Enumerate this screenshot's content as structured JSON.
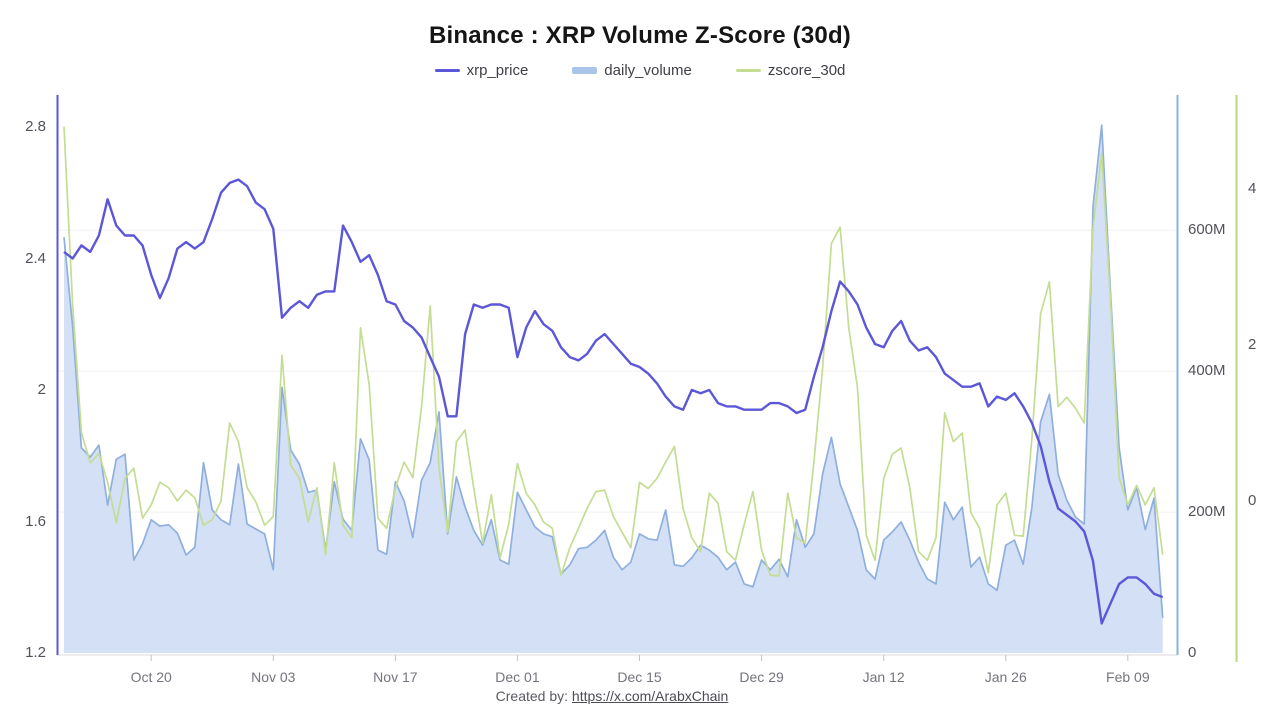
{
  "chart": {
    "title": "Binance : XRP Volume Z-Score (30d)"
  },
  "legend": {
    "items": [
      {
        "label": "xrp_price",
        "color": "#5b57d8",
        "type": "line"
      },
      {
        "label": "daily_volume",
        "color": "#a9c5ea",
        "type": "area"
      },
      {
        "label": "zscore_30d",
        "color": "#c4dd93",
        "type": "line"
      }
    ]
  },
  "footer": {
    "prefix": "Created by:",
    "link_text": "https://x.com/ArabxChain"
  },
  "chart_data": {
    "type": "line",
    "title": "Binance : XRP Volume Z-Score (30d)",
    "legend_position": "top",
    "grid": true,
    "x": [
      "Oct 10",
      "Oct 11",
      "Oct 12",
      "Oct 13",
      "Oct 14",
      "Oct 15",
      "Oct 16",
      "Oct 17",
      "Oct 18",
      "Oct 19",
      "Oct 20",
      "Oct 21",
      "Oct 22",
      "Oct 23",
      "Oct 24",
      "Oct 25",
      "Oct 26",
      "Oct 27",
      "Oct 28",
      "Oct 29",
      "Oct 30",
      "Oct 31",
      "Nov 01",
      "Nov 02",
      "Nov 03",
      "Nov 04",
      "Nov 05",
      "Nov 06",
      "Nov 07",
      "Nov 08",
      "Nov 09",
      "Nov 10",
      "Nov 11",
      "Nov 12",
      "Nov 13",
      "Nov 14",
      "Nov 15",
      "Nov 16",
      "Nov 17",
      "Nov 18",
      "Nov 19",
      "Nov 20",
      "Nov 21",
      "Nov 22",
      "Nov 23",
      "Nov 24",
      "Nov 25",
      "Nov 26",
      "Nov 27",
      "Nov 28",
      "Nov 29",
      "Nov 30",
      "Dec 01",
      "Dec 02",
      "Dec 03",
      "Dec 04",
      "Dec 05",
      "Dec 06",
      "Dec 07",
      "Dec 08",
      "Dec 09",
      "Dec 10",
      "Dec 11",
      "Dec 12",
      "Dec 13",
      "Dec 14",
      "Dec 15",
      "Dec 16",
      "Dec 17",
      "Dec 18",
      "Dec 19",
      "Dec 20",
      "Dec 21",
      "Dec 22",
      "Dec 23",
      "Dec 24",
      "Dec 25",
      "Dec 26",
      "Dec 27",
      "Dec 28",
      "Dec 29",
      "Dec 30",
      "Dec 31",
      "Jan 01",
      "Jan 02",
      "Jan 03",
      "Jan 04",
      "Jan 05",
      "Jan 06",
      "Jan 07",
      "Jan 08",
      "Jan 09",
      "Jan 10",
      "Jan 11",
      "Jan 12",
      "Jan 13",
      "Jan 14",
      "Jan 15",
      "Jan 16",
      "Jan 17",
      "Jan 18",
      "Jan 19",
      "Jan 20",
      "Jan 21",
      "Jan 22",
      "Jan 23",
      "Jan 24",
      "Jan 25",
      "Jan 26",
      "Jan 27",
      "Jan 28",
      "Jan 29",
      "Jan 30",
      "Jan 31",
      "Feb 01",
      "Feb 02",
      "Feb 03",
      "Feb 04",
      "Feb 05",
      "Feb 06",
      "Feb 07",
      "Feb 08",
      "Feb 09",
      "Feb 10",
      "Feb 11",
      "Feb 12",
      "Feb 13"
    ],
    "series": [
      {
        "name": "xrp_price",
        "type": "line",
        "axis": "price",
        "color": "#5b57d8",
        "values": [
          2.42,
          2.4,
          2.44,
          2.42,
          2.47,
          2.58,
          2.5,
          2.47,
          2.47,
          2.44,
          2.35,
          2.28,
          2.34,
          2.43,
          2.45,
          2.43,
          2.45,
          2.52,
          2.6,
          2.63,
          2.64,
          2.62,
          2.57,
          2.55,
          2.49,
          2.22,
          2.25,
          2.27,
          2.25,
          2.29,
          2.3,
          2.3,
          2.5,
          2.45,
          2.39,
          2.41,
          2.35,
          2.27,
          2.26,
          2.21,
          2.19,
          2.16,
          2.1,
          2.04,
          1.92,
          1.92,
          2.17,
          2.26,
          2.25,
          2.26,
          2.26,
          2.25,
          2.1,
          2.19,
          2.24,
          2.2,
          2.18,
          2.13,
          2.1,
          2.09,
          2.11,
          2.15,
          2.17,
          2.14,
          2.11,
          2.08,
          2.07,
          2.05,
          2.02,
          1.98,
          1.95,
          1.94,
          2.0,
          1.99,
          2.0,
          1.96,
          1.95,
          1.95,
          1.94,
          1.94,
          1.94,
          1.96,
          1.96,
          1.95,
          1.93,
          1.94,
          2.04,
          2.13,
          2.24,
          2.33,
          2.3,
          2.26,
          2.19,
          2.14,
          2.13,
          2.18,
          2.21,
          2.15,
          2.12,
          2.13,
          2.1,
          2.05,
          2.03,
          2.01,
          2.01,
          2.02,
          1.95,
          1.98,
          1.97,
          1.99,
          1.95,
          1.9,
          1.83,
          1.72,
          1.64,
          1.62,
          1.6,
          1.57,
          1.48,
          1.29,
          1.35,
          1.41,
          1.43,
          1.43,
          1.41,
          1.38,
          1.37
        ]
      },
      {
        "name": "daily_volume",
        "type": "area",
        "axis": "volume",
        "unit": "M",
        "color": "#8fafdf",
        "fill": "#ccdaf3",
        "values": [
          590,
          462,
          291,
          278,
          295,
          210,
          275,
          282,
          132,
          155,
          189,
          180,
          182,
          170,
          139,
          150,
          270,
          203,
          189,
          182,
          268,
          183,
          176,
          169,
          118,
          377,
          288,
          268,
          228,
          231,
          146,
          243,
          190,
          174,
          304,
          274,
          146,
          140,
          243,
          216,
          164,
          245,
          270,
          342,
          169,
          250,
          207,
          174,
          153,
          189,
          132,
          126,
          228,
          203,
          179,
          169,
          165,
          112,
          125,
          148,
          150,
          160,
          174,
          136,
          118,
          129,
          169,
          162,
          160,
          203,
          125,
          123,
          135,
          153,
          146,
          136,
          118,
          129,
          98,
          94,
          132,
          118,
          133,
          108,
          189,
          150,
          169,
          254,
          306,
          240,
          207,
          174,
          118,
          105,
          160,
          172,
          186,
          160,
          129,
          105,
          98,
          214,
          189,
          207,
          122,
          136,
          98,
          89,
          153,
          160,
          126,
          207,
          328,
          367,
          254,
          217,
          193,
          183,
          633,
          749,
          515,
          292,
          203,
          235,
          175,
          220,
          50
        ]
      },
      {
        "name": "zscore_30d",
        "type": "line",
        "axis": "zscore",
        "color": "#c4dd93",
        "values": [
          4.8,
          2.5,
          0.88,
          0.49,
          0.61,
          0.24,
          -0.28,
          0.29,
          0.42,
          -0.22,
          -0.05,
          0.24,
          0.17,
          0.0,
          0.14,
          0.04,
          -0.31,
          -0.24,
          0.0,
          1.0,
          0.76,
          0.17,
          -0.01,
          -0.31,
          -0.2,
          1.87,
          0.46,
          0.29,
          -0.27,
          0.17,
          -0.69,
          0.49,
          -0.31,
          -0.47,
          2.22,
          1.49,
          -0.22,
          -0.35,
          0.17,
          0.5,
          0.3,
          1.2,
          2.5,
          0.42,
          -0.4,
          0.76,
          0.91,
          0.16,
          -0.54,
          0.08,
          -0.73,
          -0.3,
          0.48,
          0.1,
          -0.05,
          -0.27,
          -0.35,
          -0.95,
          -0.6,
          -0.35,
          -0.09,
          0.12,
          0.14,
          -0.2,
          -0.4,
          -0.6,
          0.24,
          0.16,
          0.29,
          0.5,
          0.7,
          -0.1,
          -0.47,
          -0.65,
          0.1,
          -0.03,
          -0.65,
          -0.76,
          -0.3,
          0.12,
          -0.63,
          -0.95,
          -0.96,
          0.1,
          -0.47,
          -0.54,
          0.5,
          1.7,
          3.3,
          3.51,
          2.22,
          1.45,
          -0.44,
          -0.76,
          0.29,
          0.6,
          0.68,
          0.17,
          -0.65,
          -0.76,
          -0.47,
          1.13,
          0.76,
          0.87,
          -0.15,
          -0.35,
          -0.92,
          -0.05,
          0.1,
          -0.44,
          -0.45,
          0.8,
          2.4,
          2.81,
          1.21,
          1.33,
          1.19,
          1.0,
          3.5,
          4.45,
          2.6,
          0.3,
          -0.05,
          0.2,
          -0.05,
          0.17,
          -0.69
        ]
      }
    ],
    "axes": {
      "price": {
        "side": "left",
        "color": "#5b57d8",
        "ticks": [
          1.2,
          1.6,
          2,
          2.4,
          2.8
        ],
        "tick_labels": [
          "1.2",
          "1.6",
          "2",
          "2.4",
          "2.8"
        ],
        "range": [
          1.2,
          2.9
        ]
      },
      "volume": {
        "side": "right",
        "color": "#8fafdf",
        "ticks": [
          0,
          200,
          400,
          600
        ],
        "tick_labels": [
          "0",
          "200M",
          "400M",
          "600M"
        ],
        "range": [
          0,
          790
        ]
      },
      "zscore": {
        "side": "far-right",
        "color": "#b9d884",
        "ticks": [
          0,
          2,
          4
        ],
        "tick_labels": [
          "0",
          "2",
          "4"
        ],
        "range": [
          -1.95,
          5.2
        ]
      },
      "x": {
        "tick_labels": [
          "Oct 20",
          "Nov 03",
          "Nov 17",
          "Dec 01",
          "Dec 15",
          "Dec 29",
          "Jan 12",
          "Jan 26",
          "Feb 09"
        ]
      }
    }
  }
}
